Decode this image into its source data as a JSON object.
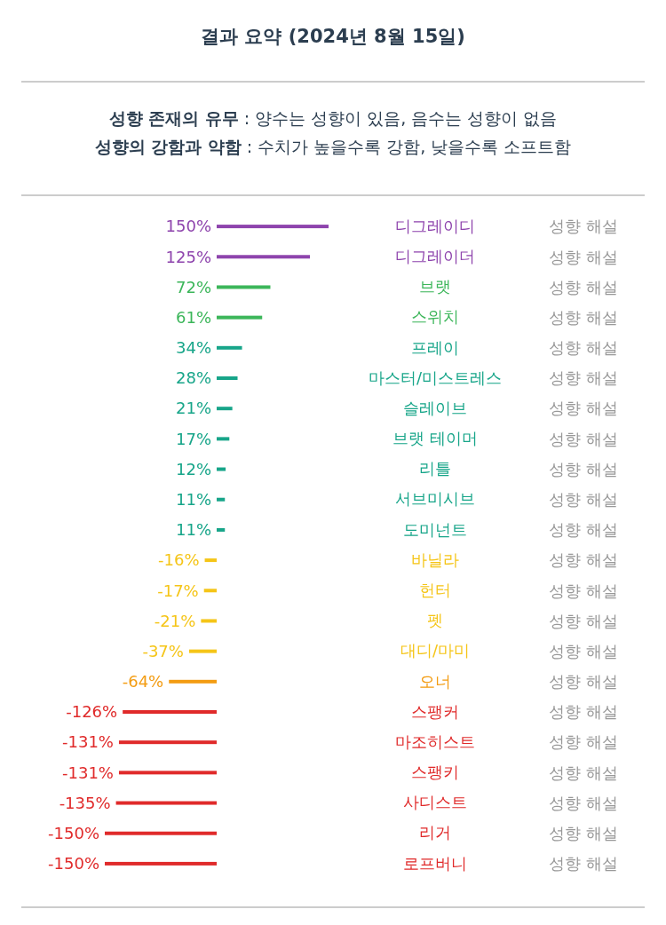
{
  "chart_data": {
    "type": "bar",
    "orientation": "horizontal",
    "title": "결과 요약 (2024년 8월 15일)",
    "subtitle": "성향 존재의 유무 : 양수는 성향이 있음, 음수는 성향이 없음\n성향의 강함과 약함 : 수치가 높을수록 강함, 낮을수록 소프트함",
    "categories": [
      "디그레이디",
      "디그레이더",
      "브랫",
      "스위치",
      "프레이",
      "마스터/미스트레스",
      "슬레이브",
      "브랫 테이머",
      "리틀",
      "서브미시브",
      "도미넌트",
      "바닐라",
      "헌터",
      "펫",
      "대디/마미",
      "오너",
      "스팽커",
      "마조히스트",
      "스팽키",
      "사디스트",
      "리거",
      "로프버니"
    ],
    "values": [
      150,
      125,
      72,
      61,
      34,
      28,
      21,
      17,
      12,
      11,
      11,
      -16,
      -17,
      -21,
      -37,
      -64,
      -126,
      -131,
      -131,
      -135,
      -150,
      -150
    ],
    "value_labels": [
      "150%",
      "125%",
      "72%",
      "61%",
      "34%",
      "28%",
      "21%",
      "17%",
      "12%",
      "11%",
      "11%",
      "-16%",
      "-17%",
      "-21%",
      "-37%",
      "-64%",
      "-126%",
      "-131%",
      "-131%",
      "-135%",
      "-150%",
      "-150%"
    ],
    "colors": [
      "#8e44ad",
      "#8e44ad",
      "#3cb65a",
      "#3cb65a",
      "#17a589",
      "#17a589",
      "#17a589",
      "#17a589",
      "#17a589",
      "#17a589",
      "#17a589",
      "#f5c518",
      "#f5c518",
      "#f5c518",
      "#f5c518",
      "#f39c12",
      "#e02a2a",
      "#e02a2a",
      "#e02a2a",
      "#e02a2a",
      "#e02a2a",
      "#e02a2a"
    ],
    "xlim": [
      -150,
      150
    ],
    "tick_labels": "y",
    "grid": false,
    "annotations": [
      "성향 해설",
      "성향 해설",
      "성향 해설",
      "성향 해설",
      "성향 해설",
      "성향 해설",
      "성향 해설",
      "성향 해설",
      "성향 해설",
      "성향 해설",
      "성향 해설",
      "성향 해설",
      "성향 해설",
      "성향 해설",
      "성향 해설",
      "성향 해설",
      "성향 해설",
      "성향 해설",
      "성향 해설",
      "성향 해설",
      "성향 해설",
      "성향 해설"
    ]
  }
}
